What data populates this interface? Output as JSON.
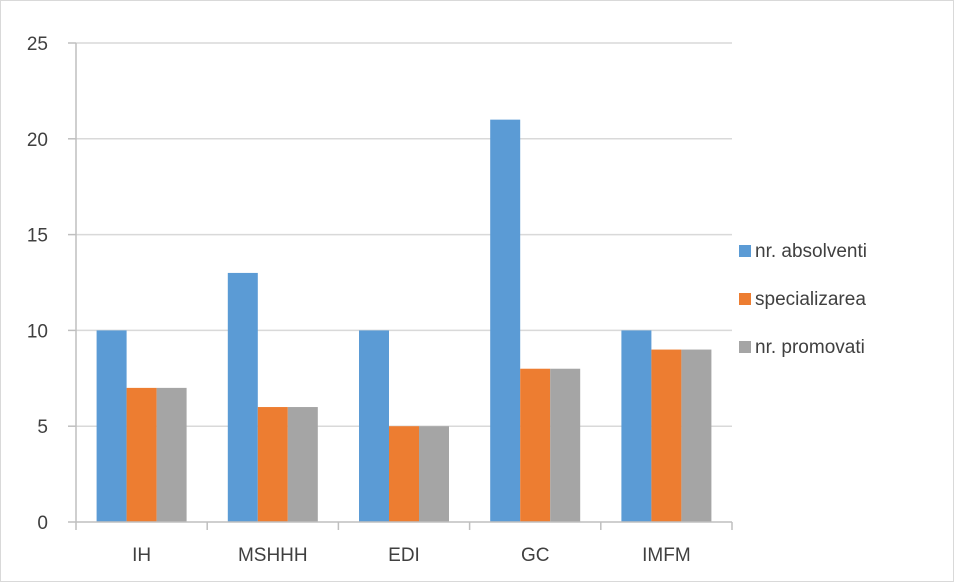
{
  "chart_data": {
    "type": "bar",
    "categories": [
      "IH",
      "MSHHH",
      "EDI",
      "GC",
      "IMFM"
    ],
    "series": [
      {
        "name": "nr. absolventi",
        "values": [
          10,
          13,
          10,
          21,
          10
        ],
        "color": "#5b9bd5"
      },
      {
        "name": "specializarea",
        "values": [
          7,
          6,
          5,
          8,
          9
        ],
        "color": "#ed7d31"
      },
      {
        "name": "nr. promovati",
        "values": [
          7,
          6,
          5,
          8,
          9
        ],
        "color": "#a5a5a5"
      }
    ],
    "ylim": [
      0,
      25
    ],
    "yticks": [
      0,
      5,
      10,
      15,
      20,
      25
    ],
    "grid": true,
    "legend_position": "right",
    "title": "",
    "xlabel": "",
    "ylabel": ""
  }
}
